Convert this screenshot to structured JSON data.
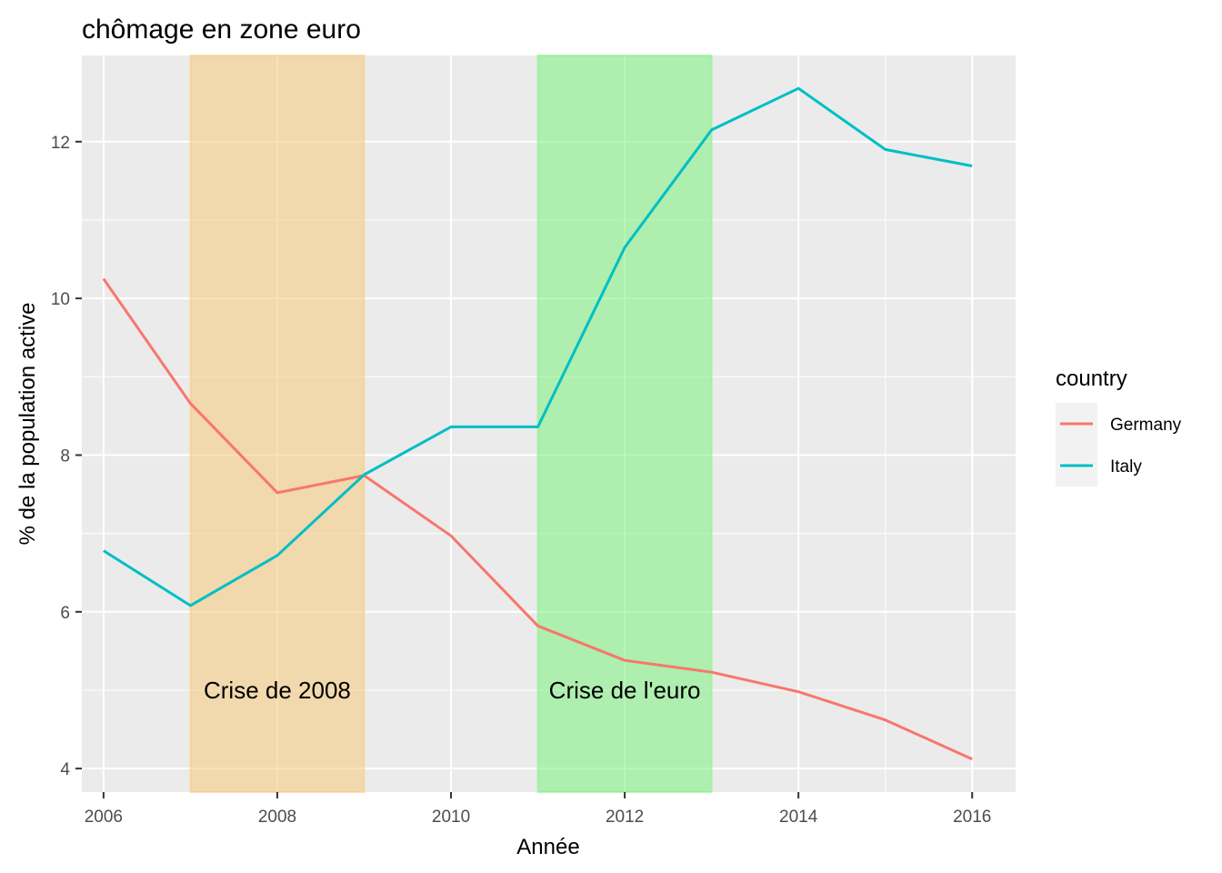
{
  "chart_data": {
    "type": "line",
    "title": "chômage en zone euro",
    "xlabel": "Année",
    "ylabel": "% de la population active",
    "xlim": [
      2005.75,
      2016.5
    ],
    "ylim": [
      3.7,
      13.1
    ],
    "x_ticks": [
      2006,
      2008,
      2010,
      2012,
      2014,
      2016
    ],
    "y_ticks": [
      4,
      6,
      8,
      10,
      12
    ],
    "grid": true,
    "legend": {
      "title": "country",
      "position": "right"
    },
    "x": [
      2006,
      2007,
      2008,
      2009,
      2010,
      2011,
      2012,
      2013,
      2014,
      2015,
      2016
    ],
    "series": [
      {
        "name": "Germany",
        "color": "#F8766D",
        "values": [
          10.25,
          8.66,
          7.52,
          7.74,
          6.97,
          5.82,
          5.38,
          5.23,
          4.98,
          4.62,
          4.12
        ]
      },
      {
        "name": "Italy",
        "color": "#00BFC4",
        "values": [
          6.78,
          6.08,
          6.72,
          7.75,
          8.36,
          8.36,
          10.65,
          12.15,
          12.68,
          11.9,
          11.69
        ]
      }
    ],
    "shaded_regions": [
      {
        "label": "Crise de 2008",
        "from": 2007,
        "to": 2009,
        "color": "#F5C97A"
      },
      {
        "label": "Crise de l'euro",
        "from": 2011,
        "to": 2013,
        "color": "#7CF07C"
      }
    ],
    "annotation_y": 5.0
  }
}
